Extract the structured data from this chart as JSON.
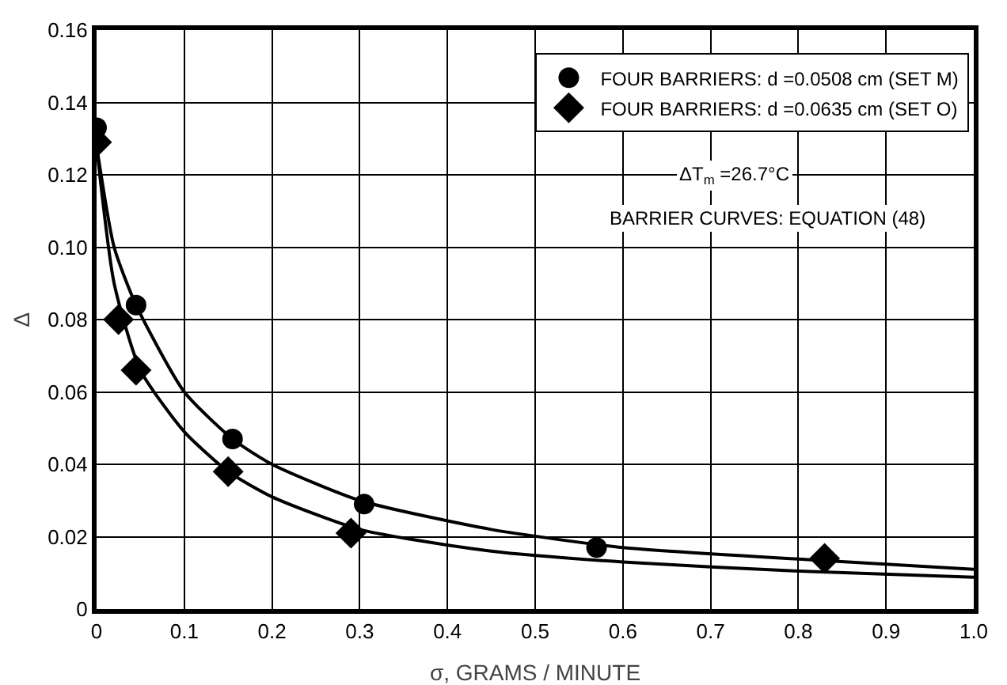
{
  "chart_data": {
    "type": "scatter",
    "xlabel": "σ, GRAMS / MINUTE",
    "ylabel": "Δ",
    "xlim": [
      0,
      1
    ],
    "ylim": [
      0,
      0.16
    ],
    "xticks": [
      0,
      0.1,
      0.2,
      0.3,
      0.4,
      0.5,
      0.6,
      0.7,
      0.8,
      0.9,
      {
        "value": 1,
        "label": "1.0"
      }
    ],
    "yticks": [
      0,
      0.02,
      0.04,
      0.06,
      0.08,
      {
        "value": 0.1,
        "label": "0.10"
      },
      0.12,
      0.14,
      0.16
    ],
    "grid": true,
    "legend": "top right",
    "series": [
      {
        "name": "FOUR BARRIERS: d =0.0508 cm (SET M)",
        "color": "#000000",
        "marker": "circle",
        "x": [
          0,
          0.045,
          0.155,
          0.305,
          0.57
        ],
        "values": [
          0.133,
          0.084,
          0.047,
          0.029,
          0.017
        ]
      },
      {
        "name": "FOUR BARRIERS: d =0.0635 cm (SET O)",
        "color": "#000000",
        "marker": "diamond",
        "x": [
          0,
          0.025,
          0.045,
          0.15,
          0.29,
          0.83
        ],
        "values": [
          0.129,
          0.08,
          0.066,
          0.038,
          0.021,
          0.014
        ]
      },
      {
        "type": "line",
        "color": "#000000",
        "line_style": "solid",
        "x": [
          0,
          0.02,
          0.045,
          0.1,
          0.155,
          0.2,
          0.3,
          0.45,
          0.6,
          0.83,
          1
        ],
        "values": [
          0.128,
          0.1,
          0.084,
          0.06,
          0.047,
          0.04,
          0.03,
          0.022,
          0.017,
          0.0134,
          0.011
        ]
      },
      {
        "type": "line",
        "color": "#000000",
        "line_style": "solid",
        "x": [
          0,
          0.02,
          0.05,
          0.1,
          0.15,
          0.2,
          0.3,
          0.45,
          0.6,
          0.8,
          1
        ],
        "values": [
          0.128,
          0.09,
          0.066,
          0.049,
          0.038,
          0.031,
          0.022,
          0.016,
          0.013,
          0.0105,
          0.0088
        ]
      }
    ],
    "annotations": [
      "ΔT$_{m}$ =26.7°C",
      "BARRIER CURVES: EQUATION (48)"
    ]
  }
}
